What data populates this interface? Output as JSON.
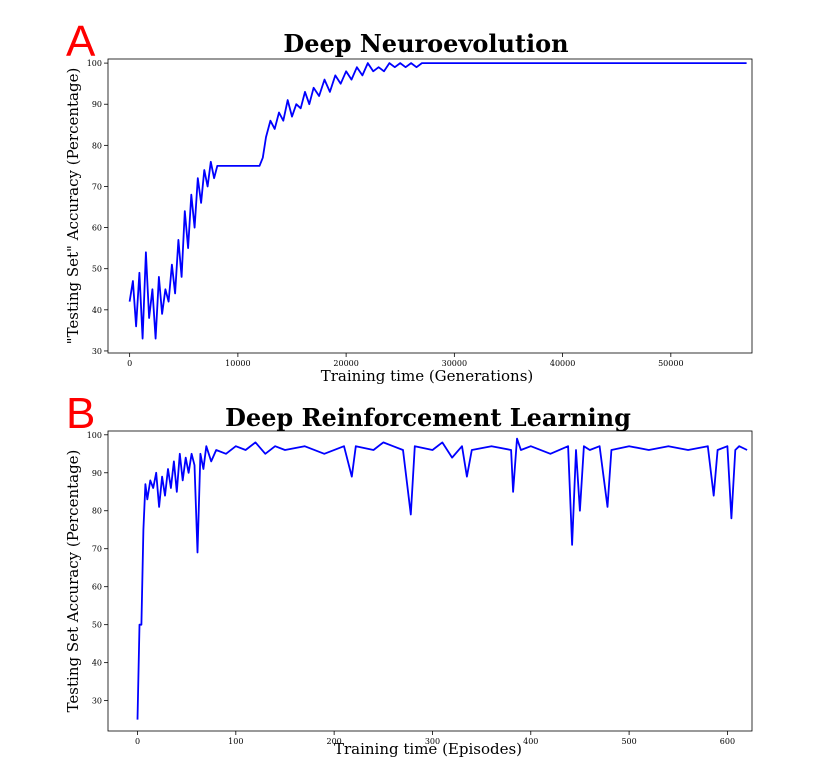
{
  "chart_data": [
    {
      "panel": "A",
      "type": "line",
      "title": "Deep Neuroevolution",
      "xlabel": "Training time (Generations)",
      "ylabel": "\"Testing Set\" Accuracy (Percentage)",
      "xlim": [
        -2000,
        57500
      ],
      "ylim": [
        29.5,
        101
      ],
      "xticks": [
        0,
        10000,
        20000,
        30000,
        40000,
        50000
      ],
      "yticks": [
        30,
        40,
        50,
        60,
        70,
        80,
        90,
        100
      ],
      "grid": false,
      "color": "#0000ff",
      "series": [
        {
          "x": [
            0,
            300,
            600,
            900,
            1200,
            1500,
            1800,
            2100,
            2400,
            2700,
            3000,
            3300,
            3600,
            3900,
            4200,
            4500,
            4800,
            5100,
            5400,
            5700,
            6000,
            6300,
            6600,
            6900,
            7200,
            7500,
            7800,
            8100,
            8500,
            9000,
            10000,
            11000,
            12000,
            12300,
            12600,
            13000,
            13400,
            13800,
            14200,
            14600,
            15000,
            15400,
            15800,
            16200,
            16600,
            17000,
            17500,
            18000,
            18500,
            19000,
            19500,
            20000,
            20500,
            21000,
            21500,
            22000,
            22500,
            23000,
            23500,
            24000,
            24500,
            25000,
            25500,
            26000,
            26500,
            27000,
            30000,
            40000,
            50000,
            57000
          ],
          "y": [
            42,
            47,
            36,
            49,
            33,
            54,
            38,
            45,
            33,
            48,
            39,
            45,
            42,
            51,
            44,
            57,
            48,
            64,
            55,
            68,
            60,
            72,
            66,
            74,
            70,
            76,
            72,
            75,
            75,
            75,
            75,
            75,
            75,
            77,
            82,
            86,
            84,
            88,
            86,
            91,
            87,
            90,
            89,
            93,
            90,
            94,
            92,
            96,
            93,
            97,
            95,
            98,
            96,
            99,
            97,
            100,
            98,
            99,
            98,
            100,
            99,
            100,
            99,
            100,
            99,
            100,
            100,
            100,
            100,
            100
          ]
        }
      ]
    },
    {
      "panel": "B",
      "type": "line",
      "title": "Deep Reinforcement Learning",
      "xlabel": "Training time (Episodes)",
      "ylabel": "Testing Set Accuracy (Percentage)",
      "xlim": [
        -30,
        625
      ],
      "ylim": [
        22,
        101
      ],
      "xticks": [
        0,
        100,
        200,
        300,
        400,
        500,
        600
      ],
      "yticks": [
        30,
        40,
        50,
        60,
        70,
        80,
        90,
        100
      ],
      "grid": false,
      "color": "#0000ff",
      "series": [
        {
          "x": [
            0,
            2,
            4,
            6,
            8,
            10,
            13,
            16,
            19,
            22,
            25,
            28,
            31,
            34,
            37,
            40,
            43,
            46,
            49,
            52,
            55,
            58,
            61,
            64,
            67,
            70,
            75,
            80,
            90,
            100,
            110,
            120,
            130,
            140,
            150,
            170,
            190,
            210,
            218,
            222,
            240,
            250,
            260,
            270,
            278,
            282,
            300,
            310,
            320,
            330,
            335,
            340,
            360,
            380,
            382,
            386,
            390,
            400,
            420,
            438,
            442,
            446,
            450,
            454,
            460,
            470,
            478,
            482,
            500,
            520,
            540,
            560,
            580,
            586,
            590,
            600,
            604,
            608,
            612,
            620
          ],
          "y": [
            25,
            50,
            50,
            75,
            87,
            83,
            88,
            86,
            90,
            81,
            89,
            84,
            91,
            86,
            93,
            85,
            95,
            88,
            94,
            90,
            95,
            92,
            69,
            95,
            91,
            97,
            93,
            96,
            95,
            97,
            96,
            98,
            95,
            97,
            96,
            97,
            95,
            97,
            89,
            97,
            96,
            98,
            97,
            96,
            79,
            97,
            96,
            98,
            94,
            97,
            89,
            96,
            97,
            96,
            85,
            99,
            96,
            97,
            95,
            97,
            71,
            96,
            80,
            97,
            96,
            97,
            81,
            96,
            97,
            96,
            97,
            96,
            97,
            84,
            96,
            97,
            78,
            96,
            97,
            96
          ]
        }
      ]
    }
  ]
}
